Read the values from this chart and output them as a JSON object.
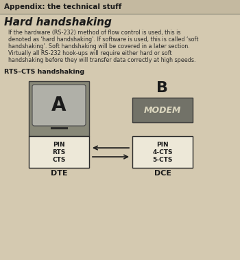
{
  "bg_color": "#d4c9b0",
  "header_text": "Appendix: the technical stuff",
  "header_color": "#1a1a1a",
  "header_bg": "#c4b9a0",
  "title": "Hard handshaking",
  "title_color": "#1a1a1a",
  "body_text": "If the hardware (RS-232) method of flow control is used, this is\ndenoted as ‘hard handshaking’. If software is used, this is called ‘soft\nhandshaking’. Soft handshaking will be covered in a later section.\nVirtually all RS-232 hook-ups will require either hard or soft\nhandshaking before they will transfer data correctly at high speeds.",
  "body_color": "#2a2a2a",
  "subtitle": "RTS–CTS handshaking",
  "subtitle_color": "#1a1a1a",
  "label_A": "A",
  "label_B": "B",
  "modem_text": "MODEM",
  "dte_label": "DTE",
  "dce_label": "DCE",
  "pin_left_lines": [
    "PIN",
    "RTS",
    "CTS"
  ],
  "pin_right_lines": [
    "PIN",
    "4-CTS",
    "5-CTS"
  ],
  "mac_body_color": "#888878",
  "mac_screen_color": "#b0b0a8",
  "modem_box_color": "#727268",
  "pin_box_color": "#ede8d8",
  "pin_border_color": "#2a2a2a",
  "arrow_color": "#1a1a1a",
  "separator_color": "#888878"
}
